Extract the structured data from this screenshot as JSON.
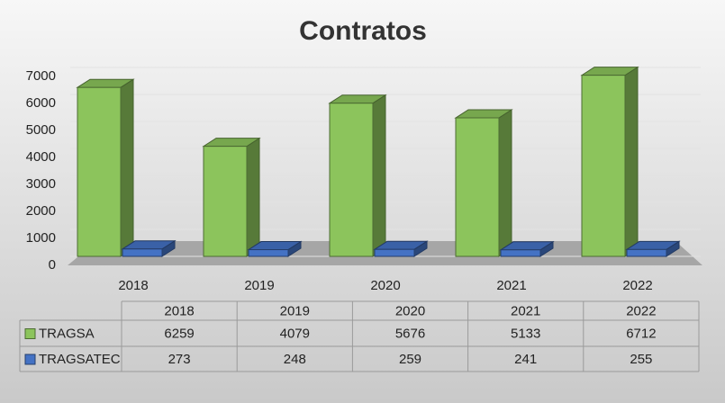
{
  "chart_data": {
    "type": "bar3d",
    "title": "Contratos",
    "categories": [
      "2018",
      "2019",
      "2020",
      "2021",
      "2022"
    ],
    "series": [
      {
        "name": "TRAGSA",
        "color": "#8cc45c",
        "values": [
          6259,
          4079,
          5676,
          5133,
          6712
        ]
      },
      {
        "name": "TRAGSATEC",
        "color": "#4472c4",
        "values": [
          273,
          248,
          259,
          241,
          255
        ]
      }
    ],
    "ylim": [
      0,
      7000
    ],
    "yticks": [
      0,
      1000,
      2000,
      3000,
      4000,
      5000,
      6000,
      7000
    ],
    "grid": true
  }
}
